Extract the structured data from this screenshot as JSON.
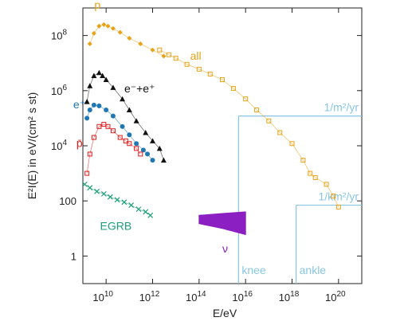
{
  "chart_data": {
    "type": "scatter",
    "title": "",
    "xlabel": "E/eV",
    "ylabel": "E²I(E) in eV/(cm² s st)",
    "x_scale": "log",
    "y_scale": "log",
    "xlim": [
      1000000000.0,
      1e+21
    ],
    "ylim": [
      0.1,
      1000000000.0
    ],
    "grid": false,
    "legend": "none",
    "x_ticks": [
      {
        "value": 10000000000.0,
        "mantissa": "10",
        "exponent": "10"
      },
      {
        "value": 1000000000000.0,
        "mantissa": "10",
        "exponent": "12"
      },
      {
        "value": 100000000000000.0,
        "mantissa": "10",
        "exponent": "14"
      },
      {
        "value": 1e+16,
        "mantissa": "10",
        "exponent": "16"
      },
      {
        "value": 1e+18,
        "mantissa": "10",
        "exponent": "18"
      },
      {
        "value": 1e+20,
        "mantissa": "10",
        "exponent": "20"
      }
    ],
    "y_ticks": [
      {
        "value": 1,
        "text": "1",
        "mantissa": "",
        "exponent": ""
      },
      {
        "value": 100,
        "text": "100",
        "mantissa": "",
        "exponent": ""
      },
      {
        "value": 10000.0,
        "text": "",
        "mantissa": "10",
        "exponent": "4"
      },
      {
        "value": 1000000.0,
        "text": "",
        "mantissa": "10",
        "exponent": "6"
      },
      {
        "value": 100000000.0,
        "text": "",
        "mantissa": "10",
        "exponent": "8"
      }
    ],
    "series": [
      {
        "name": "p",
        "color": "#e8a217",
        "marker": "diamond",
        "x": [
          2000000000.0,
          3000000000.0,
          5000000000.0,
          8000000000.0,
          12000000000.0,
          20000000000.0,
          40000000000.0,
          100000000000.0,
          300000000000.0,
          1000000000000.0,
          3000000000000.0
        ],
        "y": [
          50000000.0,
          120000000.0,
          220000000.0,
          250000000.0,
          220000000.0,
          180000000.0,
          130000000.0,
          80000000.0,
          50000000.0,
          30000000.0,
          18000000.0
        ]
      },
      {
        "name": "all",
        "color": "#e8a217",
        "marker": "square",
        "x": [
          2000000000000.0,
          5000000000000.0,
          10000000000000.0,
          30000000000000.0,
          100000000000000.0,
          300000000000000.0,
          1000000000000000.0,
          3000000000000000.0,
          1e+16,
          3e+16,
          1e+17,
          3e+17,
          1e+18,
          3e+18,
          6e+18,
          1e+19,
          3e+19,
          6e+19,
          1e+20
        ],
        "y": [
          30000000.0,
          20000000.0,
          15000000.0,
          9000000.0,
          6000000.0,
          4000000.0,
          2500000.0,
          1200000.0,
          500000.0,
          200000.0,
          80000.0,
          30000.0,
          12000.0,
          3000,
          1000,
          700,
          400,
          150,
          60
        ]
      },
      {
        "name": "e⁻+e⁺",
        "color": "#111111",
        "marker": "triangle",
        "x": [
          1500000000.0,
          2000000000.0,
          3000000000.0,
          5000000000.0,
          7000000000.0,
          10000000000.0,
          20000000000.0,
          50000000000.0,
          100000000000.0,
          200000000000.0,
          500000000000.0,
          1000000000000.0,
          2000000000000.0,
          3000000000000.0
        ],
        "y": [
          400000.0,
          1500000.0,
          3500000.0,
          4500000.0,
          3500000.0,
          2500000.0,
          1300000.0,
          500000.0,
          200000.0,
          80000.0,
          30000.0,
          15000.0,
          8000,
          3000
        ]
      },
      {
        "name": "e⁺",
        "color": "#1f77b4",
        "marker": "circle",
        "x": [
          1500000000.0,
          2000000000.0,
          3000000000.0,
          5000000000.0,
          10000000000.0,
          20000000000.0,
          50000000000.0,
          100000000000.0,
          200000000000.0,
          400000000000.0,
          600000000000.0,
          1000000000000.0
        ],
        "y": [
          100000.0,
          200000.0,
          300000.0,
          280000.0,
          200000.0,
          120000.0,
          50000.0,
          25000.0,
          12000.0,
          7000,
          5000,
          3000
        ]
      },
      {
        "name": "p̄",
        "color": "#e31a1c",
        "marker": "square",
        "x": [
          1500000000.0,
          2000000000.0,
          3000000000.0,
          5000000000.0,
          8000000000.0,
          12000000000.0,
          20000000000.0,
          40000000000.0,
          70000000000.0,
          100000000000.0,
          200000000000.0,
          300000000000.0
        ],
        "y": [
          1000,
          5000,
          20000.0,
          50000.0,
          60000.0,
          50000.0,
          35000.0,
          20000.0,
          15000.0,
          12000.0,
          8000,
          5000
        ]
      },
      {
        "name": "EGRB",
        "color": "#1b9e77",
        "marker": "cross",
        "x": [
          1200000000.0,
          2000000000.0,
          4000000000.0,
          8000000000.0,
          15000000000.0,
          30000000000.0,
          60000000000.0,
          120000000000.0,
          250000000000.0,
          500000000000.0,
          800000000000.0
        ],
        "y": [
          400,
          300,
          220,
          180,
          140,
          110,
          90,
          70,
          50,
          40,
          30
        ]
      },
      {
        "name": "ν",
        "color": "#8b1fc2",
        "marker": "band",
        "x": [
          100000000000000.0,
          1000000000000000.0,
          1e+16
        ],
        "y_low": [
          15,
          10,
          6
        ],
        "y_high": [
          30,
          35,
          40
        ]
      }
    ],
    "annotations": [
      {
        "text": "1/m²/yr",
        "type": "hline",
        "y": 120000.0,
        "x_from": 5000000000000000.0,
        "color": "#87c6e3"
      },
      {
        "text": "1/km²/yr",
        "type": "hline",
        "y": 70,
        "x_from": 1.5e+18,
        "color": "#87c6e3"
      },
      {
        "text": "knee",
        "type": "vline",
        "x": 5000000000000000.0,
        "color": "#87c6e3"
      },
      {
        "text": "ankle",
        "type": "vline",
        "x": 1.5e+18,
        "color": "#87c6e3"
      }
    ],
    "colors": {
      "axis": "#222222",
      "ref_lines": "#87c6e3"
    }
  }
}
